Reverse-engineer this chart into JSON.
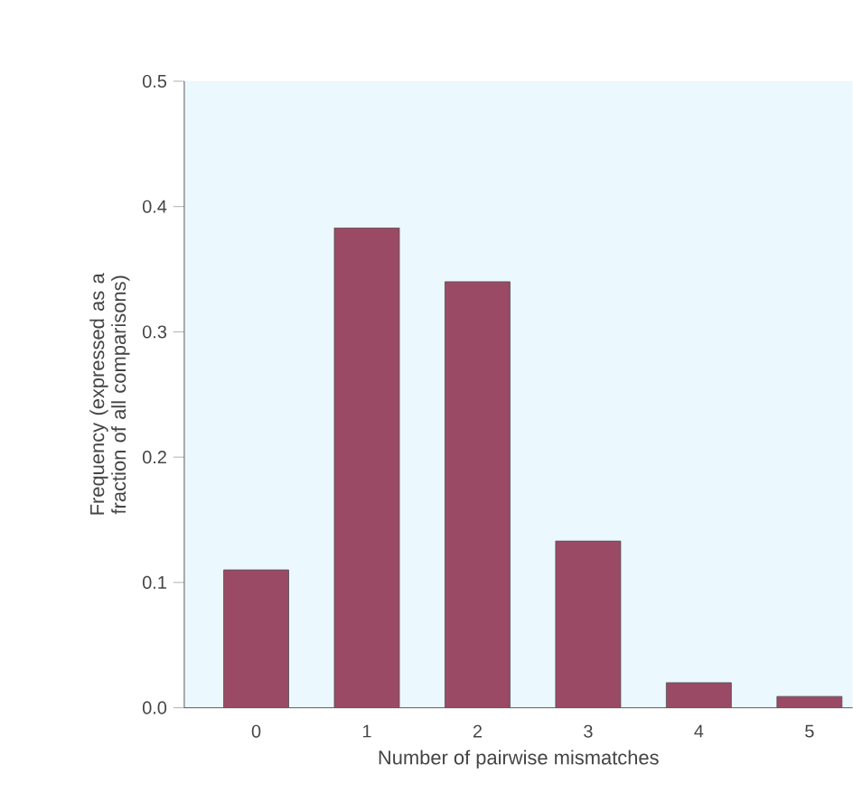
{
  "chart_data": {
    "type": "bar",
    "xlabel": "Number of pairwise mismatches",
    "ylabel": "Frequency (expressed as a fraction of all comparisons)",
    "categories": [
      "0",
      "1",
      "2",
      "3",
      "4",
      "5"
    ],
    "values": [
      0.11,
      0.383,
      0.34,
      0.133,
      0.02,
      0.009
    ],
    "color": "#9b4a66",
    "ylim": [
      0,
      0.5
    ],
    "yticks": [
      {
        "value": 0,
        "label": "0.0"
      },
      {
        "value": 0.1,
        "label": "0.1"
      },
      {
        "value": 0.2,
        "label": "0.2"
      },
      {
        "value": 0.3,
        "label": "0.3"
      },
      {
        "value": 0.4,
        "label": "0.4"
      },
      {
        "value": 0.5,
        "label": "0.5"
      }
    ],
    "grid": false
  }
}
